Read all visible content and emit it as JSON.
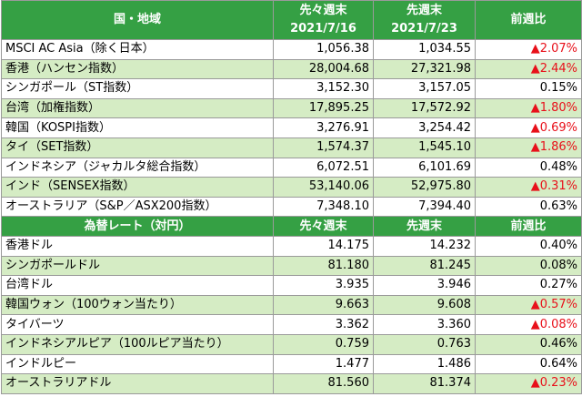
{
  "stock_table": {
    "header": [
      {
        "label": "国・地域"
      },
      {
        "label": "先々週末",
        "date": "2021/7/16"
      },
      {
        "label": "先週末",
        "date": "2021/7/23"
      },
      {
        "label": "前週比"
      }
    ],
    "rows": [
      {
        "cells": [
          "MSCI AC Asia（除く日本）",
          "1,056.38",
          "1,034.55",
          "▲2.07%"
        ],
        "change_color": "#e8101a"
      },
      {
        "cells": [
          "香港（ハンセン指数）",
          "28,004.68",
          "27,321.98",
          "▲2.44%"
        ],
        "change_color": "#e8101a"
      },
      {
        "cells": [
          "シンガポール（ST指数）",
          "3,152.30",
          "3,157.05",
          "0.15%"
        ],
        "change_color": "#000000"
      },
      {
        "cells": [
          "台湾（加権指数）",
          "17,895.25",
          "17,572.92",
          "▲1.80%"
        ],
        "change_color": "#e8101a"
      },
      {
        "cells": [
          "韓国（KOSPI指数）",
          "3,276.91",
          "3,254.42",
          "▲0.69%"
        ],
        "change_color": "#e8101a"
      },
      {
        "cells": [
          "タイ（SET指数）",
          "1,574.37",
          "1,545.10",
          "▲1.86%"
        ],
        "change_color": "#e8101a"
      },
      {
        "cells": [
          "インドネシア（ジャカルタ総合指数）",
          "6,072.51",
          "6,101.69",
          "0.48%"
        ],
        "change_color": "#000000"
      },
      {
        "cells": [
          "インド（SENSEX指数）",
          "53,140.06",
          "52,975.80",
          "▲0.31%"
        ],
        "change_color": "#e8101a"
      },
      {
        "cells": [
          "オーストラリア（S&P／ASX200指数）",
          "7,348.10",
          "7,394.40",
          "0.63%"
        ],
        "change_color": "#000000"
      }
    ]
  },
  "fx_table": {
    "header": [
      {
        "label": "為替レート（対円）"
      },
      {
        "label": "先々週末"
      },
      {
        "label": "先週末"
      },
      {
        "label": "前週比"
      }
    ],
    "rows": [
      {
        "cells": [
          "香港ドル",
          "14.175",
          "14.232",
          "0.40%"
        ],
        "change_color": "#000000"
      },
      {
        "cells": [
          "シンガポールドル",
          "81.180",
          "81.245",
          "0.08%"
        ],
        "change_color": "#000000"
      },
      {
        "cells": [
          "台湾ドル",
          "3.935",
          "3.946",
          "0.27%"
        ],
        "change_color": "#000000"
      },
      {
        "cells": [
          "韓国ウォン（100ウォン当たり）",
          "9.663",
          "9.608",
          "▲0.57%"
        ],
        "change_color": "#e8101a"
      },
      {
        "cells": [
          "タイバーツ",
          "3.362",
          "3.360",
          "▲0.08%"
        ],
        "change_color": "#e8101a"
      },
      {
        "cells": [
          "インドネシアルピア（100ルピア当たり）",
          "0.759",
          "0.763",
          "0.46%"
        ],
        "change_color": "#000000"
      },
      {
        "cells": [
          "インドルピー",
          "1.477",
          "1.486",
          "0.64%"
        ],
        "change_color": "#000000"
      },
      {
        "cells": [
          "オーストラリアドル",
          "81.560",
          "81.374",
          "▲0.23%"
        ],
        "change_color": "#e8101a"
      }
    ]
  }
}
